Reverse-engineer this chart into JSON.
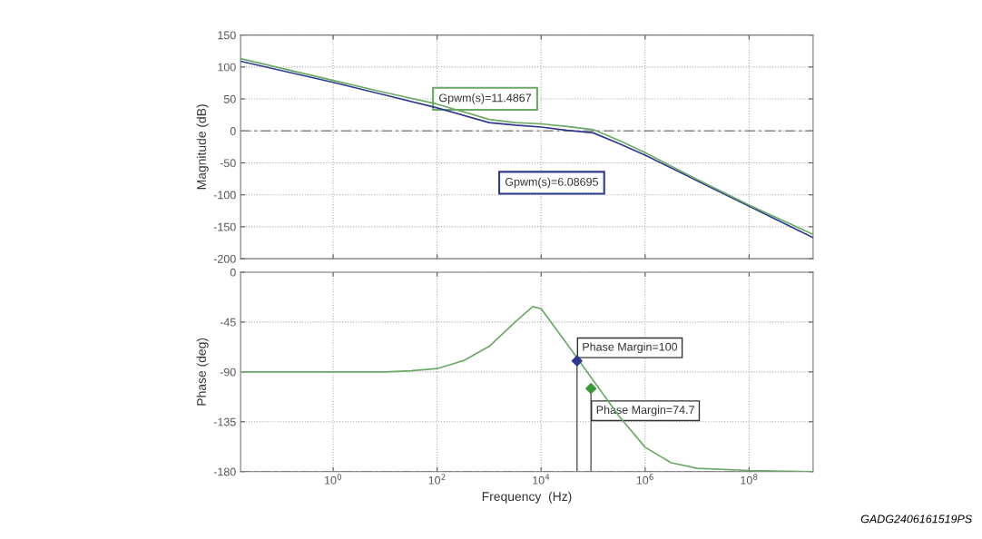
{
  "chart_data": [
    {
      "type": "line",
      "ylabel": "Magnitude (dB)",
      "log": "x",
      "grid": true,
      "tick_labels": "y",
      "xlim": [
        0.0166,
        1700000000
      ],
      "xticks": [
        {
          "value": 1,
          "label": null
        },
        {
          "value": 100,
          "label": null
        },
        {
          "value": 10000,
          "label": null
        },
        {
          "value": 1000000,
          "label": null
        },
        {
          "value": 100000000,
          "label": null
        }
      ],
      "ylim": [
        -200,
        150
      ],
      "yticks": [
        -200,
        -150,
        -100,
        -50,
        0,
        50,
        100,
        150
      ],
      "x": [
        0.0166,
        1,
        10,
        100,
        1000,
        3162,
        10000,
        31623,
        100000,
        316228,
        1000000,
        10000000,
        100000000,
        1700000000
      ],
      "series": [
        {
          "name": "Gpwm(s)=6.08695",
          "color": "#2e3a92",
          "values": [
            109,
            76,
            56,
            36,
            13,
            9,
            6,
            1,
            -3,
            -20,
            -38,
            -78,
            -118,
            -167
          ]
        },
        {
          "name": "Gpwm(s)=11.4867",
          "color": "#6aaa64",
          "values": [
            113,
            79,
            60,
            42,
            18,
            13,
            11,
            7,
            2,
            -15,
            -34,
            -76,
            -116,
            -162
          ]
        }
      ],
      "ref_lines": [
        {
          "axis": "y",
          "value": 0,
          "color": "#888888",
          "line_style": "dashed"
        }
      ]
    },
    {
      "type": "line",
      "xlabel": "Frequency  (Hz)",
      "ylabel": "Phase (deg)",
      "log": "x",
      "grid": true,
      "xlim": [
        0.0166,
        1700000000
      ],
      "xticks": [
        {
          "value": 1,
          "label": "10$^{0}$"
        },
        {
          "value": 100,
          "label": "10$^{2}$"
        },
        {
          "value": 10000,
          "label": "10$^{4}$"
        },
        {
          "value": 1000000,
          "label": "10$^{6}$"
        },
        {
          "value": 100000000,
          "label": "10$^{8}$"
        }
      ],
      "ylim": [
        -180,
        0
      ],
      "yticks": [
        -180,
        -135,
        -90,
        -45,
        0
      ],
      "series": [
        {
          "color": "#6aaa64",
          "x": [
            0.0166,
            1,
            10,
            31.6,
            100,
            316,
            1000,
            3162,
            6918,
            10000,
            31623,
            316228,
            1000000,
            3162278,
            10000000,
            100000000,
            1700000000
          ],
          "values": [
            -90,
            -90,
            -90,
            -89,
            -87,
            -80,
            -67,
            -45,
            -31,
            -33,
            -65,
            -130,
            -158,
            -172,
            -177,
            -179,
            -180
          ]
        },
        {
          "type": "scatter",
          "marker": "diamond",
          "color": "#2e3a92",
          "x": [
            49000
          ],
          "values": [
            -80
          ]
        },
        {
          "type": "scatter",
          "marker": "diamond",
          "color": "#3a9a3a",
          "x": [
            91000
          ],
          "values": [
            -105
          ]
        }
      ],
      "ref_lines": [
        {
          "axis": "y",
          "value": -180,
          "color": "#888888",
          "line_style": "dashed"
        }
      ],
      "annotations": [
        {
          "text": "Phase Margin=100",
          "x": 49000,
          "y": -80
        },
        {
          "text": "Phase Margin=74.7",
          "x": 91000,
          "y": -105
        },
        "GADG2406161519PS"
      ]
    }
  ]
}
